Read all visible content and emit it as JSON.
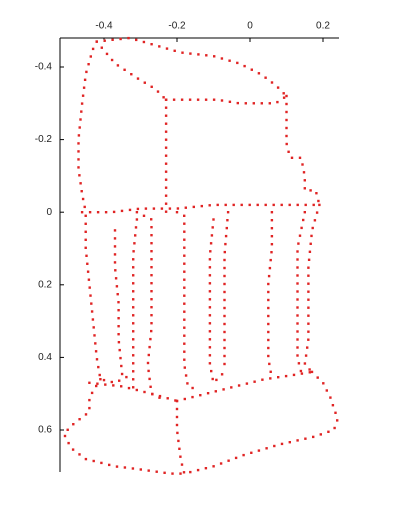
{
  "chart_data": {
    "type": "scatter",
    "title": "",
    "xlabel": "",
    "ylabel": "",
    "xlim": [
      -0.52,
      0.24
    ],
    "ylim": [
      -0.49,
      0.73
    ],
    "y_inverted": true,
    "x_axis_position": "top",
    "y_axis_position": "left",
    "grid": false,
    "marker_color": "#e02424",
    "x_ticks": [
      {
        "value": -0.4,
        "label": "-0.4"
      },
      {
        "value": -0.2,
        "label": "-0.2"
      },
      {
        "value": 0,
        "label": "0"
      },
      {
        "value": 0.2,
        "label": "0.2"
      }
    ],
    "y_ticks": [
      {
        "value": -0.4,
        "label": "-0.4"
      },
      {
        "value": -0.2,
        "label": "-0.2"
      },
      {
        "value": 0,
        "label": "0"
      },
      {
        "value": 0.2,
        "label": "0.2"
      },
      {
        "value": 0.4,
        "label": "0.4"
      },
      {
        "value": 0.6,
        "label": "0.6"
      }
    ],
    "series": [
      {
        "path": [
          [
            -0.42,
            -0.47
          ],
          [
            -0.33,
            -0.48
          ],
          [
            -0.26,
            -0.46
          ],
          [
            -0.19,
            -0.44
          ],
          [
            -0.1,
            -0.43
          ],
          [
            -0.03,
            -0.41
          ],
          [
            0.03,
            -0.38
          ],
          [
            0.07,
            -0.35
          ],
          [
            0.1,
            -0.32
          ]
        ],
        "closed": false
      },
      {
        "path": [
          [
            -0.42,
            -0.47
          ],
          [
            -0.37,
            -0.41
          ],
          [
            -0.31,
            -0.37
          ],
          [
            -0.26,
            -0.34
          ],
          [
            -0.23,
            -0.31
          ]
        ],
        "closed": false
      },
      {
        "path": [
          [
            -0.23,
            -0.31
          ],
          [
            -0.16,
            -0.31
          ],
          [
            -0.09,
            -0.31
          ],
          [
            -0.03,
            -0.3
          ],
          [
            0.03,
            -0.3
          ],
          [
            0.07,
            -0.3
          ],
          [
            0.1,
            -0.32
          ]
        ],
        "closed": false
      },
      {
        "path": [
          [
            -0.43,
            -0.45
          ],
          [
            -0.45,
            -0.38
          ],
          [
            -0.46,
            -0.3
          ],
          [
            -0.47,
            -0.2
          ],
          [
            -0.47,
            -0.12
          ],
          [
            -0.46,
            -0.05
          ],
          [
            -0.45,
            0.0
          ]
        ],
        "closed": false
      },
      {
        "path": [
          [
            0.1,
            -0.32
          ],
          [
            0.1,
            -0.25
          ],
          [
            0.1,
            -0.19
          ],
          [
            0.11,
            -0.15
          ],
          [
            0.14,
            -0.15
          ],
          [
            0.15,
            -0.1
          ],
          [
            0.15,
            -0.06
          ],
          [
            0.18,
            -0.06
          ],
          [
            0.19,
            -0.02
          ]
        ],
        "closed": false
      },
      {
        "path": [
          [
            -0.23,
            -0.31
          ],
          [
            -0.23,
            -0.2
          ],
          [
            -0.23,
            -0.1
          ],
          [
            -0.23,
            0.0
          ]
        ],
        "closed": false
      },
      {
        "path": [
          [
            -0.46,
            0.0
          ],
          [
            -0.38,
            0.0
          ],
          [
            -0.3,
            -0.01
          ],
          [
            -0.2,
            -0.01
          ],
          [
            -0.1,
            -0.02
          ],
          [
            0.0,
            -0.02
          ],
          [
            0.1,
            -0.02
          ],
          [
            0.19,
            -0.02
          ]
        ],
        "closed": false
      },
      {
        "path": [
          [
            -0.45,
            0.01
          ],
          [
            -0.45,
            0.1
          ],
          [
            -0.44,
            0.2
          ],
          [
            -0.43,
            0.3
          ],
          [
            -0.42,
            0.4
          ],
          [
            -0.41,
            0.46
          ],
          [
            -0.37,
            0.47
          ],
          [
            -0.33,
            0.45
          ]
        ],
        "closed": false
      },
      {
        "path": [
          [
            -0.37,
            0.05
          ],
          [
            -0.37,
            0.15
          ],
          [
            -0.36,
            0.25
          ],
          [
            -0.36,
            0.35
          ],
          [
            -0.35,
            0.45
          ]
        ],
        "closed": false
      },
      {
        "path": [
          [
            -0.31,
            0.0
          ],
          [
            -0.27,
            0.02
          ],
          [
            -0.27,
            0.12
          ],
          [
            -0.27,
            0.22
          ],
          [
            -0.27,
            0.32
          ],
          [
            -0.28,
            0.42
          ],
          [
            -0.27,
            0.5
          ],
          [
            -0.23,
            0.52
          ]
        ],
        "closed": false
      },
      {
        "path": [
          [
            -0.31,
            0.02
          ],
          [
            -0.32,
            0.12
          ],
          [
            -0.32,
            0.22
          ],
          [
            -0.32,
            0.32
          ],
          [
            -0.32,
            0.42
          ],
          [
            -0.32,
            0.5
          ]
        ],
        "closed": false
      },
      {
        "path": [
          [
            -0.2,
            0.0
          ],
          [
            -0.18,
            0.01
          ],
          [
            -0.18,
            0.12
          ],
          [
            -0.18,
            0.22
          ],
          [
            -0.18,
            0.32
          ],
          [
            -0.18,
            0.42
          ],
          [
            -0.17,
            0.48
          ],
          [
            -0.14,
            0.49
          ]
        ],
        "closed": false
      },
      {
        "path": [
          [
            -0.1,
            0.02
          ],
          [
            -0.11,
            0.12
          ],
          [
            -0.11,
            0.22
          ],
          [
            -0.11,
            0.32
          ],
          [
            -0.11,
            0.42
          ],
          [
            -0.1,
            0.47
          ],
          [
            -0.07,
            0.44
          ]
        ],
        "closed": false
      },
      {
        "path": [
          [
            -0.06,
            0.0
          ],
          [
            -0.07,
            0.12
          ],
          [
            -0.07,
            0.24
          ],
          [
            -0.07,
            0.36
          ],
          [
            -0.07,
            0.44
          ]
        ],
        "closed": false
      },
      {
        "path": [
          [
            0.06,
            0.0
          ],
          [
            0.06,
            0.1
          ],
          [
            0.05,
            0.2
          ],
          [
            0.05,
            0.3
          ],
          [
            0.05,
            0.4
          ],
          [
            0.06,
            0.46
          ]
        ],
        "closed": false
      },
      {
        "path": [
          [
            0.15,
            0.0
          ],
          [
            0.13,
            0.1
          ],
          [
            0.13,
            0.2
          ],
          [
            0.13,
            0.3
          ],
          [
            0.13,
            0.4
          ],
          [
            0.14,
            0.44
          ]
        ],
        "closed": false
      },
      {
        "path": [
          [
            0.19,
            -0.02
          ],
          [
            0.17,
            0.05
          ],
          [
            0.16,
            0.15
          ],
          [
            0.16,
            0.25
          ],
          [
            0.16,
            0.35
          ],
          [
            0.15,
            0.42
          ],
          [
            0.17,
            0.44
          ]
        ],
        "closed": false
      },
      {
        "path": [
          [
            0.17,
            0.44
          ],
          [
            0.2,
            0.47
          ],
          [
            0.22,
            0.51
          ],
          [
            0.24,
            0.57
          ],
          [
            0.23,
            0.6
          ],
          [
            0.17,
            0.62
          ],
          [
            0.08,
            0.64
          ],
          [
            -0.02,
            0.67
          ],
          [
            -0.1,
            0.7
          ],
          [
            -0.18,
            0.72
          ]
        ],
        "closed": false
      },
      {
        "path": [
          [
            -0.41,
            0.46
          ],
          [
            -0.44,
            0.51
          ],
          [
            -0.44,
            0.55
          ],
          [
            -0.48,
            0.58
          ],
          [
            -0.51,
            0.61
          ],
          [
            -0.49,
            0.65
          ],
          [
            -0.45,
            0.68
          ],
          [
            -0.37,
            0.7
          ],
          [
            -0.29,
            0.71
          ],
          [
            -0.22,
            0.72
          ],
          [
            -0.18,
            0.72
          ]
        ],
        "closed": false
      },
      {
        "path": [
          [
            -0.44,
            0.47
          ],
          [
            -0.35,
            0.48
          ],
          [
            -0.27,
            0.5
          ],
          [
            -0.2,
            0.52
          ]
        ],
        "closed": false
      },
      {
        "path": [
          [
            -0.2,
            0.52
          ],
          [
            -0.2,
            0.6
          ],
          [
            -0.19,
            0.68
          ],
          [
            -0.18,
            0.72
          ]
        ],
        "closed": false
      },
      {
        "path": [
          [
            -0.2,
            0.52
          ],
          [
            -0.12,
            0.5
          ],
          [
            -0.04,
            0.48
          ],
          [
            0.04,
            0.46
          ],
          [
            0.11,
            0.45
          ],
          [
            0.17,
            0.44
          ]
        ],
        "closed": false
      }
    ]
  }
}
